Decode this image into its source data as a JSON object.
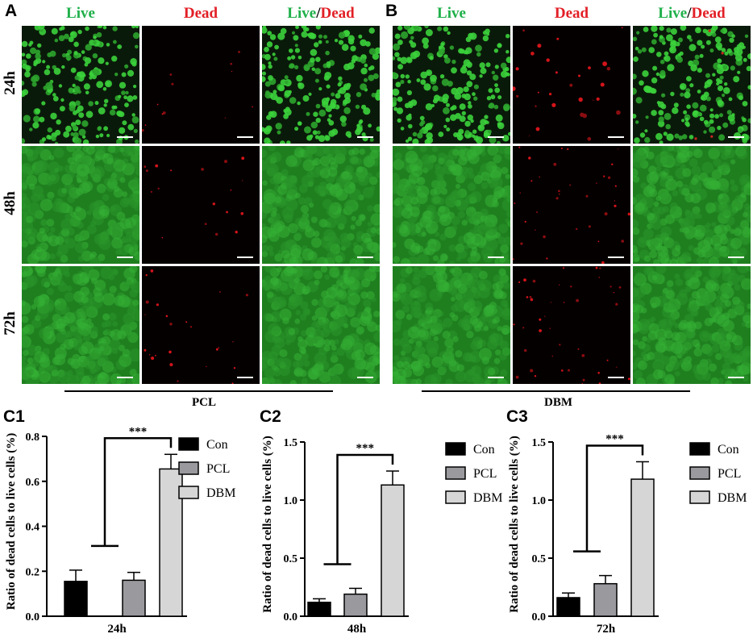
{
  "panels": {
    "a": "A",
    "b": "B",
    "c1": "C1",
    "c2": "C2",
    "c3": "C3"
  },
  "columns": {
    "live": "Live",
    "dead": "Dead",
    "slash": "/"
  },
  "rows": [
    "24h",
    "48h",
    "72h"
  ],
  "groups": {
    "pcl": "PCL",
    "dbm": "DBM"
  },
  "colors": {
    "live_green": "#1fb04a",
    "dead_red": "#e21f26",
    "con_bar": "#000000",
    "pcl_bar": "#9a9a9e",
    "dbm_bar": "#d6d6d6"
  },
  "chart_data": [
    {
      "type": "bar",
      "panel": "C1",
      "categories": [
        "Con",
        "PCL",
        "DBM"
      ],
      "values": [
        0.155,
        0.16,
        0.655
      ],
      "errors": [
        0.05,
        0.035,
        0.065
      ],
      "xlabel": "24h",
      "ylabel": "Ratio of dead cells to live cells (%)",
      "ylim": [
        0,
        0.8
      ],
      "yticks": [
        "0.0",
        "0.2",
        "0.4",
        "0.6",
        "0.8"
      ],
      "legend": [
        "Con",
        "PCL",
        "DBM"
      ],
      "significance": "***"
    },
    {
      "type": "bar",
      "panel": "C2",
      "categories": [
        "Con",
        "PCL",
        "DBM"
      ],
      "values": [
        0.12,
        0.19,
        1.13
      ],
      "errors": [
        0.03,
        0.05,
        0.12
      ],
      "xlabel": "48h",
      "ylabel": "Ratio of dead cells to live cells (%)",
      "ylim": [
        0,
        1.5
      ],
      "yticks": [
        "0.0",
        "0.5",
        "1.0",
        "1.5"
      ],
      "legend": [
        "Con",
        "PCL",
        "DBM"
      ],
      "significance": "***"
    },
    {
      "type": "bar",
      "panel": "C3",
      "categories": [
        "Con",
        "PCL",
        "DBM"
      ],
      "values": [
        0.16,
        0.28,
        1.18
      ],
      "errors": [
        0.04,
        0.07,
        0.15
      ],
      "xlabel": "72h",
      "ylabel": "Ratio of dead cells to live cells (%)",
      "ylim": [
        0,
        1.5
      ],
      "yticks": [
        "0.0",
        "0.5",
        "1.0",
        "1.5"
      ],
      "legend": [
        "Con",
        "PCL",
        "DBM"
      ],
      "significance": "***"
    }
  ]
}
